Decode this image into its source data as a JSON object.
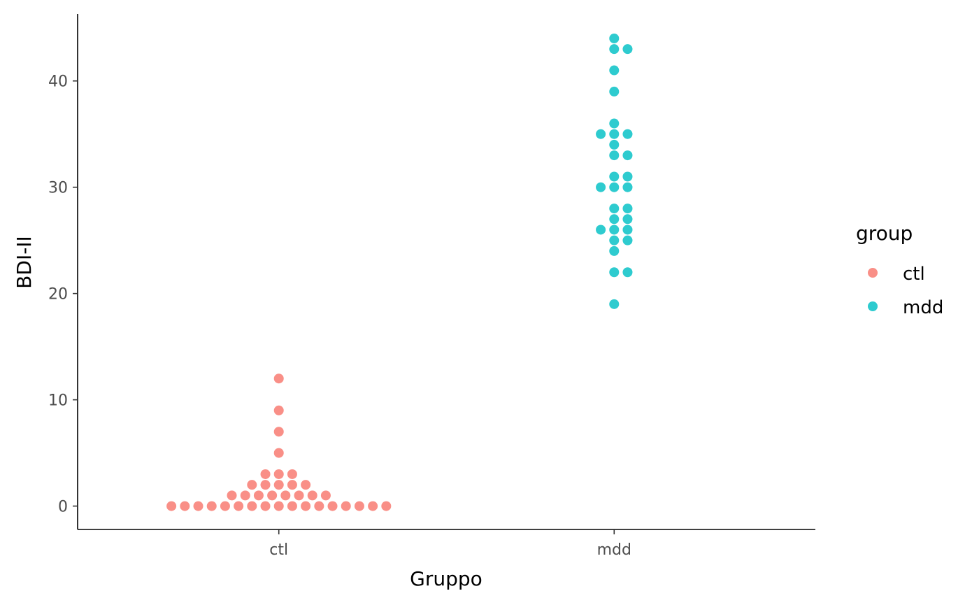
{
  "chart_data": {
    "type": "scatter",
    "subtype": "beeswarm",
    "title": "",
    "xlabel": "Gruppo",
    "ylabel": "BDI-II",
    "categories": [
      "ctl",
      "mdd"
    ],
    "ylim": [
      -2.2,
      46.3
    ],
    "yticks": [
      0,
      10,
      20,
      30,
      40
    ],
    "ytick_labels": [
      "0",
      "10",
      "20",
      "30",
      "40"
    ],
    "grid": false,
    "legend": {
      "title": "group",
      "position": "right",
      "entries": [
        {
          "label": "ctl",
          "color": "#F8766D"
        },
        {
          "label": "mdd",
          "color": "#00BFC4"
        }
      ]
    },
    "series": [
      {
        "name": "ctl",
        "color": "#F8766D",
        "category": "ctl",
        "values": [
          0,
          0,
          0,
          0,
          0,
          0,
          0,
          0,
          0,
          0,
          0,
          0,
          0,
          0,
          0,
          0,
          0,
          1,
          1,
          1,
          1,
          1,
          1,
          1,
          1,
          2,
          2,
          2,
          2,
          2,
          3,
          3,
          3,
          5,
          7,
          9,
          12
        ]
      },
      {
        "name": "mdd",
        "color": "#00BFC4",
        "category": "mdd",
        "values": [
          19,
          22,
          22,
          24,
          25,
          25,
          26,
          26,
          26,
          27,
          27,
          28,
          28,
          30,
          30,
          30,
          31,
          31,
          33,
          33,
          34,
          35,
          35,
          35,
          36,
          39,
          41,
          43,
          43,
          44
        ]
      }
    ]
  }
}
